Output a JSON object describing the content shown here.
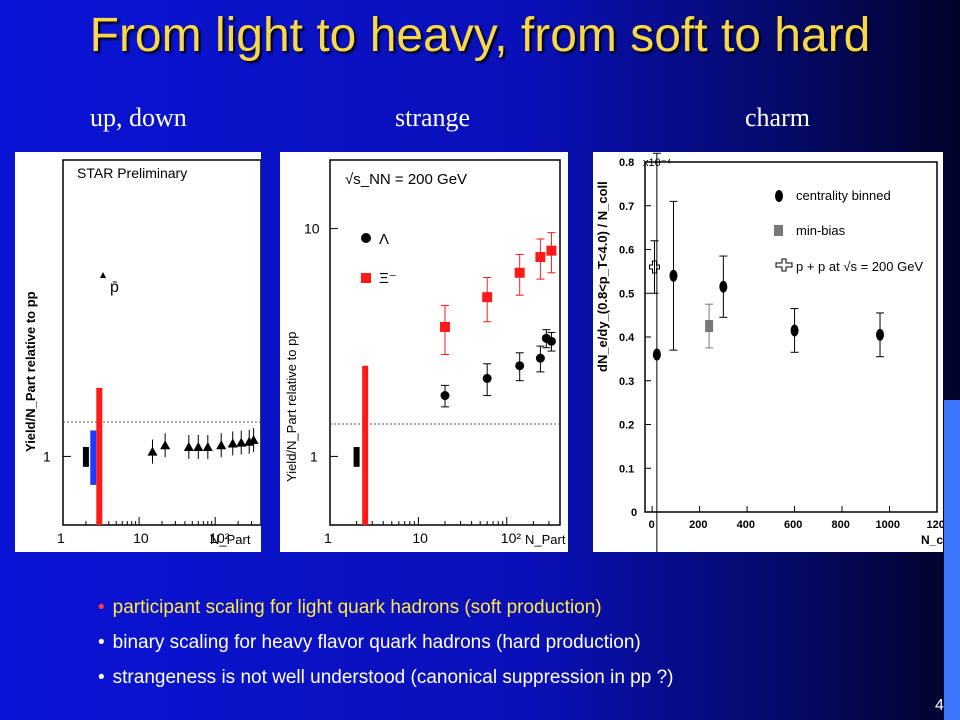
{
  "slide": {
    "title": "From light to heavy, from soft to hard",
    "headers": [
      "up, down",
      "strange",
      "charm"
    ],
    "bullets": [
      {
        "text": "participant scaling for light quark hadrons (soft production)",
        "color": "#ffe94a",
        "dot_color": "#ff3b3b"
      },
      {
        "text": "binary scaling for heavy flavor quark hadrons (hard production)",
        "color": "#ffffff",
        "dot_color": "#ffffff"
      },
      {
        "text": "strangeness is not well understood (canonical suppression in pp ?)",
        "color": "#ffffff",
        "dot_color": "#ffffff"
      }
    ],
    "page_number": "4",
    "colors": {
      "title": "#f7d84c",
      "background": "#0a14d6"
    }
  },
  "chart_data": [
    {
      "type": "scatter",
      "title": "STAR Preliminary",
      "ylabel": "Yield/N_Part relative to pp",
      "xlabel": "N_Part",
      "xscale": "log",
      "yscale": "log",
      "xlim": [
        1,
        400
      ],
      "ylim": [
        0.5,
        20
      ],
      "xticks": [
        "1",
        "10",
        "10²"
      ],
      "yticks": [
        "1"
      ],
      "legend": [
        {
          "label": "p̄",
          "marker": "triangle"
        }
      ],
      "series": [
        {
          "name": "p̄",
          "marker": "triangle",
          "x": [
            15,
            22,
            45,
            60,
            80,
            120,
            170,
            220,
            280,
            320
          ],
          "y": [
            1.05,
            1.12,
            1.1,
            1.1,
            1.1,
            1.12,
            1.14,
            1.15,
            1.16,
            1.18
          ]
        }
      ],
      "ref_line": 1,
      "bands": [
        {
          "x": 2.0,
          "low": 0.9,
          "high": 1.1,
          "color": "#000000"
        },
        {
          "x": 2.5,
          "low": 0.75,
          "high": 1.3,
          "color": "#1a3cff"
        },
        {
          "x": 3.0,
          "low": 0.5,
          "high": 2.0,
          "color": "#ff1a1a"
        }
      ]
    },
    {
      "type": "scatter",
      "title": "√s_NN = 200 GeV",
      "ylabel": "Yield/N_Part relative to pp",
      "xlabel": "N_Part",
      "xscale": "log",
      "yscale": "log",
      "xlim": [
        1,
        400
      ],
      "ylim": [
        0.5,
        20
      ],
      "xticks": [
        "1",
        "10",
        "10²"
      ],
      "yticks": [
        "1",
        "10"
      ],
      "legend": [
        {
          "label": "Λ",
          "marker": "circle"
        },
        {
          "label": "Ξ⁻",
          "marker": "square"
        }
      ],
      "series": [
        {
          "name": "Λ",
          "marker": "circle",
          "color": "#000000",
          "x": [
            20,
            60,
            140,
            240,
            280,
            320
          ],
          "y": [
            1.85,
            2.2,
            2.5,
            2.7,
            3.3,
            3.2
          ],
          "err": [
            0.2,
            0.35,
            0.35,
            0.35,
            0.3,
            0.3
          ]
        },
        {
          "name": "Ξ⁻",
          "marker": "square",
          "color": "#ff1a1a",
          "x": [
            20,
            60,
            140,
            240,
            320
          ],
          "y": [
            3.7,
            5.0,
            6.4,
            7.5,
            8.0
          ],
          "err": [
            0.9,
            1.1,
            1.3,
            1.5,
            1.6
          ]
        }
      ],
      "ref_line": 1,
      "bands": [
        {
          "x": 2.0,
          "low": 0.9,
          "high": 1.1,
          "color": "#000000"
        },
        {
          "x": 2.5,
          "low": 0.5,
          "high": 2.5,
          "color": "#ff1a1a"
        }
      ]
    },
    {
      "type": "scatter",
      "ylabel": "dN_e/dy_(0.8<p_T<4.0) / N_coll",
      "xlabel": "N_coll",
      "ylim": [
        0,
        0.8
      ],
      "xlim": [
        -30,
        1200
      ],
      "xticks": [
        "0",
        "200",
        "400",
        "600",
        "800",
        "1000",
        "120"
      ],
      "yticks": [
        "0",
        "0.1",
        "0.2",
        "0.3",
        "0.4",
        "0.5",
        "0.6",
        "0.7",
        "0.8"
      ],
      "y_multiplier": "x10⁻⁴",
      "legend": [
        {
          "label": "centrality binned",
          "marker": "circle"
        },
        {
          "label": "min-bias",
          "marker": "square"
        },
        {
          "label": "p + p at √s = 200 GeV",
          "marker": "cross"
        }
      ],
      "series": [
        {
          "name": "centrality binned",
          "marker": "circle",
          "x": [
            20,
            90,
            300,
            600,
            960
          ],
          "y": [
            0.36,
            0.54,
            0.515,
            0.415,
            0.405
          ],
          "err": [
            0.46,
            0.17,
            0.07,
            0.05,
            0.05
          ]
        },
        {
          "name": "min-bias",
          "marker": "square",
          "x": [
            240
          ],
          "y": [
            0.425
          ],
          "err": [
            0.05
          ]
        },
        {
          "name": "p + p at √s = 200 GeV",
          "marker": "cross",
          "x": [
            10
          ],
          "y": [
            0.56
          ],
          "err": [
            0.06
          ]
        }
      ]
    }
  ]
}
